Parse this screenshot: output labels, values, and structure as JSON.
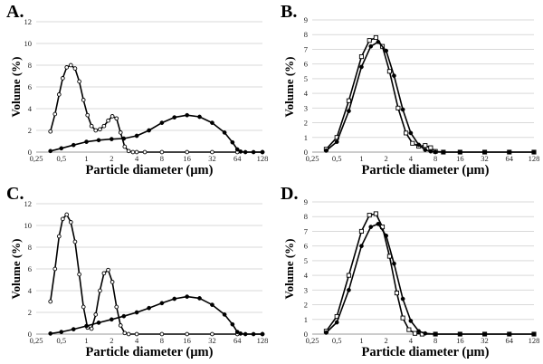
{
  "chart_data": [
    {
      "type": "line",
      "panel_letter": "A.",
      "xlabel": "Particle diameter (µm)",
      "ylabel": "Volume (%)",
      "x_scale": "log2",
      "xlim": [
        0.25,
        128
      ],
      "x_ticks": [
        "0,25",
        "0,5",
        "1",
        "2",
        "4",
        "8",
        "16",
        "32",
        "64",
        "128"
      ],
      "ylim": [
        0,
        12
      ],
      "y_ticks": [
        "0",
        "2",
        "4",
        "6",
        "8",
        "10",
        "12"
      ],
      "grid": "horizontal",
      "series": [
        {
          "marker": "open-circle",
          "x": [
            0.37,
            0.42,
            0.47,
            0.52,
            0.58,
            0.65,
            0.73,
            0.82,
            0.92,
            1.03,
            1.15,
            1.29,
            1.45,
            1.62,
            1.82,
            2.04,
            2.29,
            2.56,
            2.87,
            3.2,
            3.6,
            4.0,
            5.0,
            8.0,
            16,
            32,
            64,
            128
          ],
          "y": [
            1.9,
            3.5,
            5.3,
            6.8,
            7.8,
            8.0,
            7.7,
            6.5,
            4.8,
            3.4,
            2.4,
            2.0,
            2.1,
            2.4,
            2.9,
            3.3,
            3.1,
            1.8,
            0.5,
            0.1,
            0.0,
            0.0,
            0.0,
            0.0,
            0.0,
            0.0,
            0.0,
            0.0
          ]
        },
        {
          "marker": "filled-circle",
          "x": [
            0.37,
            0.5,
            0.7,
            1.0,
            1.4,
            2.0,
            2.8,
            4.0,
            5.6,
            8.0,
            11.3,
            16,
            22.6,
            32,
            45,
            56,
            64,
            70,
            80,
            100,
            128
          ],
          "y": [
            0.1,
            0.35,
            0.65,
            0.95,
            1.1,
            1.2,
            1.25,
            1.5,
            2.0,
            2.7,
            3.2,
            3.4,
            3.25,
            2.7,
            1.8,
            0.9,
            0.25,
            0.05,
            0.0,
            0.0,
            0.0
          ]
        }
      ]
    },
    {
      "type": "line",
      "panel_letter": "B.",
      "xlabel": "Particle diameter (µm)",
      "ylabel": "Volume (%)",
      "x_scale": "log2",
      "xlim": [
        0.25,
        128
      ],
      "x_ticks": [
        "0,25",
        "0,5",
        "1",
        "2",
        "4",
        "8",
        "16",
        "32",
        "64",
        "128"
      ],
      "ylim": [
        0,
        9
      ],
      "y_ticks": [
        "0",
        "1",
        "2",
        "3",
        "4",
        "5",
        "6",
        "7",
        "8",
        "9"
      ],
      "grid": "horizontal",
      "series": [
        {
          "marker": "open-square",
          "x": [
            0.37,
            0.5,
            0.7,
            1.0,
            1.25,
            1.5,
            1.8,
            2.2,
            2.8,
            3.5,
            4.2,
            5.0,
            6.0,
            7.0,
            8.0,
            10,
            16,
            32,
            64,
            128
          ],
          "y": [
            0.2,
            1.0,
            3.5,
            6.5,
            7.6,
            7.8,
            7.2,
            5.5,
            3.0,
            1.3,
            0.6,
            0.4,
            0.45,
            0.3,
            0.05,
            0.0,
            0.0,
            0.0,
            0.0,
            0.0
          ]
        },
        {
          "marker": "filled-circle",
          "x": [
            0.37,
            0.5,
            0.7,
            1.0,
            1.3,
            1.6,
            2.0,
            2.5,
            3.2,
            4.0,
            5.0,
            6.0,
            7.0,
            8.0,
            10,
            16,
            32,
            64,
            128
          ],
          "y": [
            0.1,
            0.7,
            2.8,
            5.8,
            7.2,
            7.5,
            6.9,
            5.2,
            2.9,
            1.3,
            0.5,
            0.15,
            0.05,
            0.0,
            0.0,
            0.0,
            0.0,
            0.0,
            0.0
          ]
        }
      ]
    },
    {
      "type": "line",
      "panel_letter": "C.",
      "xlabel": "Particle diameter (µm)",
      "ylabel": "Volume (%)",
      "x_scale": "log2",
      "xlim": [
        0.25,
        128
      ],
      "x_ticks": [
        "0,25",
        "0,5",
        "1",
        "2",
        "4",
        "8",
        "16",
        "32",
        "64",
        "128"
      ],
      "ylim": [
        0,
        12
      ],
      "y_ticks": [
        "0",
        "2",
        "4",
        "6",
        "8",
        "10",
        "12"
      ],
      "grid": "horizontal",
      "series": [
        {
          "marker": "open-circle",
          "x": [
            0.37,
            0.42,
            0.47,
            0.52,
            0.58,
            0.65,
            0.73,
            0.82,
            0.92,
            1.03,
            1.15,
            1.29,
            1.45,
            1.62,
            1.82,
            2.04,
            2.29,
            2.56,
            2.87,
            3.2,
            4.0,
            8.0,
            16,
            32,
            64,
            128
          ],
          "y": [
            3.0,
            6.0,
            9.0,
            10.6,
            11.0,
            10.3,
            8.5,
            5.5,
            2.5,
            0.6,
            0.5,
            1.8,
            4.0,
            5.6,
            5.9,
            4.8,
            2.5,
            0.8,
            0.1,
            0.0,
            0.0,
            0.0,
            0.0,
            0.0,
            0.0,
            0.0
          ]
        },
        {
          "marker": "filled-circle",
          "x": [
            0.37,
            0.5,
            0.7,
            1.0,
            1.4,
            2.0,
            2.8,
            4.0,
            5.6,
            8.0,
            11.3,
            16,
            22.6,
            32,
            45,
            56,
            64,
            70,
            80,
            100,
            128
          ],
          "y": [
            0.05,
            0.2,
            0.45,
            0.75,
            1.05,
            1.35,
            1.65,
            2.0,
            2.4,
            2.85,
            3.25,
            3.45,
            3.3,
            2.7,
            1.8,
            0.9,
            0.2,
            0.05,
            0.0,
            0.0,
            0.0
          ]
        }
      ]
    },
    {
      "type": "line",
      "panel_letter": "D.",
      "xlabel": "Particle diameter (µm)",
      "ylabel": "Volume (%)",
      "x_scale": "log2",
      "xlim": [
        0.25,
        128
      ],
      "x_ticks": [
        "0,25",
        "0,5",
        "1",
        "2",
        "4",
        "8",
        "16",
        "32",
        "64",
        "128"
      ],
      "ylim": [
        0,
        9
      ],
      "y_ticks": [
        "0",
        "1",
        "2",
        "3",
        "4",
        "5",
        "6",
        "7",
        "8",
        "9"
      ],
      "grid": "horizontal",
      "series": [
        {
          "marker": "open-square",
          "x": [
            0.37,
            0.5,
            0.7,
            1.0,
            1.25,
            1.5,
            1.8,
            2.2,
            2.7,
            3.2,
            3.8,
            4.5,
            5.5,
            8.0,
            16,
            32,
            64,
            128
          ],
          "y": [
            0.2,
            1.2,
            4.0,
            7.0,
            8.1,
            8.2,
            7.3,
            5.3,
            2.8,
            1.1,
            0.3,
            0.05,
            0.0,
            0.0,
            0.0,
            0.0,
            0.0,
            0.0
          ]
        },
        {
          "marker": "filled-circle",
          "x": [
            0.37,
            0.5,
            0.7,
            1.0,
            1.3,
            1.6,
            2.0,
            2.5,
            3.2,
            4.0,
            5.0,
            6.0,
            8.0,
            16,
            32,
            64,
            128
          ],
          "y": [
            0.1,
            0.8,
            3.0,
            6.0,
            7.3,
            7.5,
            6.7,
            4.8,
            2.4,
            0.9,
            0.2,
            0.05,
            0.0,
            0.0,
            0.0,
            0.0,
            0.0
          ]
        }
      ]
    }
  ]
}
